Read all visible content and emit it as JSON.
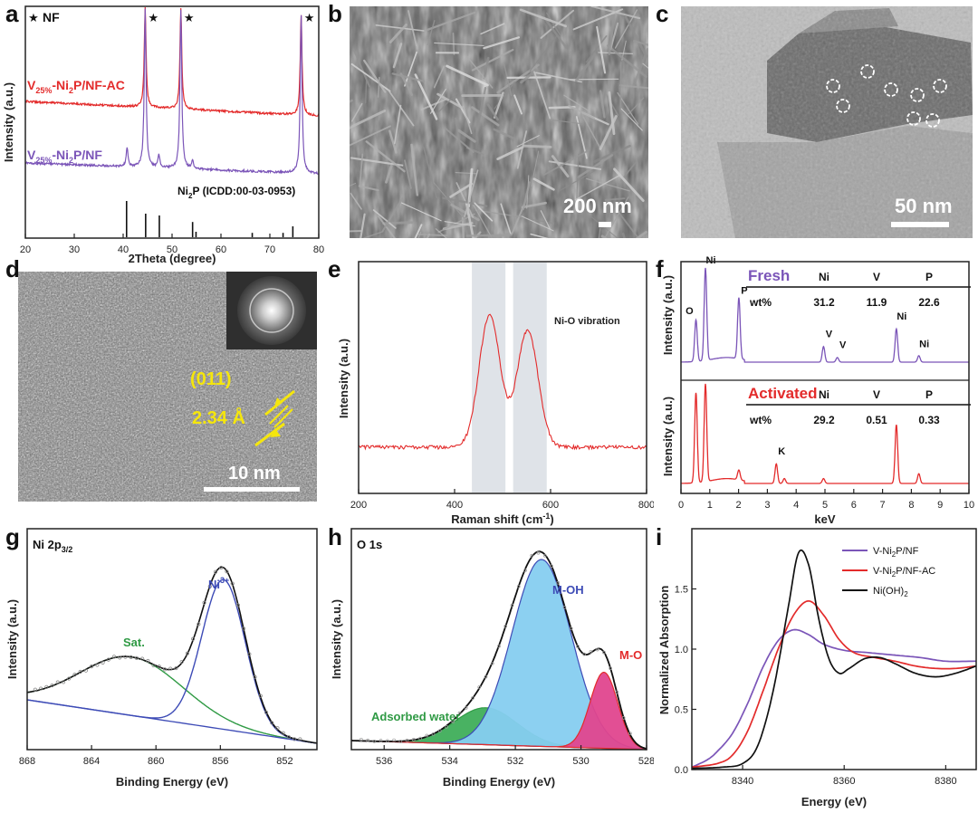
{
  "panels": {
    "a": {
      "label": "a"
    },
    "b": {
      "label": "b",
      "scale": "200 nm"
    },
    "c": {
      "label": "c",
      "scale": "50 nm"
    },
    "d": {
      "label": "d",
      "scale": "10 nm",
      "plane": "(011)",
      "spacing": "2.34 Å"
    },
    "e": {
      "label": "e"
    },
    "f": {
      "label": "f"
    },
    "g": {
      "label": "g"
    },
    "h": {
      "label": "h"
    },
    "i": {
      "label": "i"
    }
  },
  "colors": {
    "red": "#e32b2b",
    "purple": "#7b55b8",
    "green": "#2f9a44",
    "blue": "#3d4bb6",
    "cyan": "#86cdf0",
    "magenta": "#e0468e",
    "black": "#111111",
    "yellow": "#f5e60c"
  },
  "chart_data": [
    {
      "id": "a",
      "type": "line",
      "xlabel": "2Theta (degree)",
      "ylabel": "Intensity (a.u.)",
      "xlim": [
        20,
        80
      ],
      "xticks": [
        20,
        30,
        40,
        50,
        60,
        70,
        80
      ],
      "nf_label": "NF",
      "star_positions": [
        44.5,
        51.8,
        76.4
      ],
      "series": [
        {
          "name": "V25%-Ni2P/NF-AC",
          "name_main": "V",
          "name_sub": "25%",
          "name_rest": "-Ni",
          "name_sub2": "2",
          "name_end": "P/NF-AC",
          "peaks": [
            [
              44.5,
              1.0
            ],
            [
              51.8,
              1.0
            ],
            [
              76.4,
              1.0
            ]
          ]
        },
        {
          "name": "V25%-Ni2P/NF",
          "name_main": "V",
          "name_sub": "25%",
          "name_rest": "-Ni",
          "name_sub2": "2",
          "name_end": "P/NF",
          "peaks": [
            [
              40.8,
              0.12
            ],
            [
              44.5,
              1.0
            ],
            [
              47.3,
              0.08
            ],
            [
              51.8,
              1.0
            ],
            [
              54.2,
              0.05
            ],
            [
              76.4,
              1.0
            ]
          ]
        }
      ],
      "reference": {
        "name": "Ni2P (ICDD:00-03-0953)",
        "name_a": "Ni",
        "name_sub": "2",
        "name_b": "P (ICDD:00-03-0953)",
        "lines": [
          [
            40.7,
            1.0
          ],
          [
            44.6,
            0.65
          ],
          [
            47.4,
            0.6
          ],
          [
            54.2,
            0.42
          ],
          [
            54.9,
            0.15
          ],
          [
            66.4,
            0.12
          ],
          [
            72.7,
            0.12
          ],
          [
            74.7,
            0.3
          ]
        ]
      }
    },
    {
      "id": "e",
      "type": "line",
      "xlabel": "Raman shift (cm",
      "xlabel_sup": "-1",
      "xlabel_end": ")",
      "ylabel": "Intensity (a.u.)",
      "xlim": [
        200,
        800
      ],
      "xticks": [
        200,
        400,
        600,
        800
      ],
      "annotation": "Ni-O vibration",
      "bands": [
        [
          436,
          506
        ],
        [
          522,
          592
        ]
      ],
      "peaks": [
        [
          473,
          1.0
        ],
        [
          552,
          0.88
        ]
      ]
    },
    {
      "id": "f",
      "type": "bar",
      "xlabel": "keV",
      "ylabel": "Intensity (a.u.)",
      "xlim": [
        0,
        10
      ],
      "xticks": [
        0,
        1,
        2,
        3,
        4,
        5,
        6,
        7,
        8,
        9,
        10
      ],
      "fresh": {
        "title": "Fresh",
        "table": {
          "headers": [
            "Ni",
            "V",
            "P"
          ],
          "row_label": "wt%",
          "values": [
            "31.2",
            "11.9",
            "22.6"
          ]
        },
        "peaks": [
          [
            0.52,
            0.45
          ],
          [
            0.85,
            1.0
          ],
          [
            2.01,
            0.66
          ],
          [
            4.95,
            0.17
          ],
          [
            5.43,
            0.05
          ],
          [
            7.48,
            0.36
          ],
          [
            8.26,
            0.07
          ]
        ],
        "peak_labels": [
          {
            "t": "O",
            "x": 0.42,
            "h": 0.5
          },
          {
            "t": "Ni",
            "x": 0.85,
            "h": 1.05
          },
          {
            "t": "P",
            "x": 2.01,
            "h": 0.72
          },
          {
            "t": "V",
            "x": 4.95,
            "h": 0.25
          },
          {
            "t": "V",
            "x": 5.43,
            "h": 0.13
          },
          {
            "t": "Ni",
            "x": 7.48,
            "h": 0.44
          },
          {
            "t": "Ni",
            "x": 8.26,
            "h": 0.14
          }
        ]
      },
      "activated": {
        "title": "Activated",
        "table": {
          "headers": [
            "Ni",
            "V",
            "P"
          ],
          "row_label": "wt%",
          "values": [
            "29.2",
            "0.51",
            "0.33"
          ]
        },
        "peaks": [
          [
            0.52,
            0.92
          ],
          [
            0.85,
            1.0
          ],
          [
            2.01,
            0.1
          ],
          [
            3.31,
            0.2
          ],
          [
            3.59,
            0.05
          ],
          [
            4.95,
            0.05
          ],
          [
            7.48,
            0.6
          ],
          [
            8.26,
            0.1
          ]
        ],
        "peak_labels": [
          {
            "t": "K",
            "x": 3.31,
            "h": 0.28
          }
        ]
      }
    },
    {
      "id": "g",
      "type": "line",
      "title": "Ni 2p",
      "title_sub": "3/2",
      "xlabel": "Binding Energy (eV)",
      "ylabel": "Intensity (a.u.)",
      "xlim": [
        868,
        850
      ],
      "xticks": [
        868,
        864,
        860,
        856,
        852
      ],
      "labels": {
        "sat": "Sat.",
        "ni3": "Ni",
        "ni3_sup": "3+"
      },
      "components": [
        {
          "name": "Sat.",
          "center": 861.5,
          "width": 3.2,
          "height": 0.34
        },
        {
          "name": "Ni3+",
          "center": 855.8,
          "width": 1.35,
          "height": 0.87
        }
      ]
    },
    {
      "id": "h",
      "type": "area",
      "title": "O 1s",
      "xlabel": "Binding Energy (eV)",
      "ylabel": "Intensity (a.u.)",
      "xlim": [
        537,
        528
      ],
      "xticks": [
        536,
        534,
        532,
        530,
        528
      ],
      "components": [
        {
          "name": "Adsorbed water",
          "center": 532.9,
          "width": 0.95,
          "height": 0.17
        },
        {
          "name": "M-OH",
          "center": 531.2,
          "width": 0.9,
          "height": 0.86
        },
        {
          "name": "M-O",
          "center": 529.3,
          "width": 0.42,
          "height": 0.35
        }
      ]
    },
    {
      "id": "i",
      "type": "line",
      "xlabel": "Energy (eV)",
      "ylabel": "Normalized Absorption",
      "xlim": [
        8330,
        8386
      ],
      "xticks": [
        8340,
        8360,
        8380
      ],
      "ylim": [
        0,
        2.0
      ],
      "yticks": [
        0.0,
        0.5,
        1.0,
        1.5
      ],
      "legend_position": "top-right",
      "series": [
        {
          "name": "V-Ni2P/NF",
          "name_a": "V-Ni",
          "name_sub": "2",
          "name_b": "P/NF",
          "points": [
            [
              8330,
              0.02
            ],
            [
              8333,
              0.08
            ],
            [
              8335,
              0.15
            ],
            [
              8338,
              0.3
            ],
            [
              8341,
              0.55
            ],
            [
              8344,
              0.85
            ],
            [
              8347,
              1.07
            ],
            [
              8350,
              1.16
            ],
            [
              8353,
              1.12
            ],
            [
              8356,
              1.04
            ],
            [
              8360,
              0.99
            ],
            [
              8365,
              0.97
            ],
            [
              8370,
              0.95
            ],
            [
              8375,
              0.93
            ],
            [
              8380,
              0.9
            ],
            [
              8386,
              0.9
            ]
          ]
        },
        {
          "name": "V-Ni2P/NF-AC",
          "name_a": "V-Ni",
          "name_sub": "2",
          "name_b": "P/NF-AC",
          "points": [
            [
              8330,
              0.02
            ],
            [
              8335,
              0.05
            ],
            [
              8338,
              0.12
            ],
            [
              8341,
              0.32
            ],
            [
              8344,
              0.65
            ],
            [
              8347,
              1.0
            ],
            [
              8350,
              1.28
            ],
            [
              8353,
              1.4
            ],
            [
              8356,
              1.28
            ],
            [
              8359,
              1.08
            ],
            [
              8362,
              0.97
            ],
            [
              8366,
              0.93
            ],
            [
              8370,
              0.9
            ],
            [
              8374,
              0.86
            ],
            [
              8378,
              0.84
            ],
            [
              8382,
              0.84
            ],
            [
              8386,
              0.86
            ]
          ]
        },
        {
          "name": "Ni(OH)2",
          "name_a": "Ni(OH)",
          "name_sub": "2",
          "name_b": "",
          "points": [
            [
              8330,
              0.01
            ],
            [
              8336,
              0.02
            ],
            [
              8340,
              0.05
            ],
            [
              8343,
              0.2
            ],
            [
              8346,
              0.65
            ],
            [
              8349,
              1.35
            ],
            [
              8351,
              1.8
            ],
            [
              8353,
              1.7
            ],
            [
              8355,
              1.25
            ],
            [
              8357,
              0.92
            ],
            [
              8359,
              0.8
            ],
            [
              8361,
              0.84
            ],
            [
              8364,
              0.92
            ],
            [
              8367,
              0.93
            ],
            [
              8370,
              0.88
            ],
            [
              8374,
              0.8
            ],
            [
              8378,
              0.77
            ],
            [
              8382,
              0.8
            ],
            [
              8386,
              0.86
            ]
          ]
        }
      ]
    }
  ]
}
